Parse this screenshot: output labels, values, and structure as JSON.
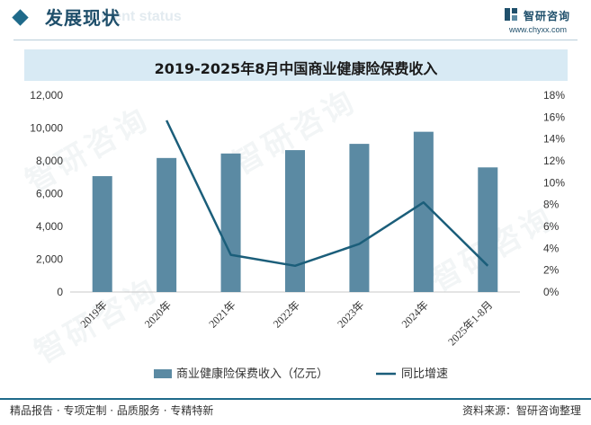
{
  "header": {
    "title": "发展现状",
    "title_en": "ment status",
    "logo_name": "智研咨询",
    "logo_url": "www.chyxx.com",
    "watermark": "智研咨询"
  },
  "chart_data": {
    "type": "bar",
    "title": "2019-2025年8月中国商业健康险保费收入",
    "categories": [
      "2019年",
      "2020年",
      "2021年",
      "2022年",
      "2023年",
      "2024年",
      "2025年1-8月"
    ],
    "series": [
      {
        "name": "商业健康险保费收入（亿元）",
        "type": "bar",
        "axis": "left",
        "color": "#5b8aa3",
        "values": [
          7066,
          8173,
          8447,
          8653,
          9035,
          9773,
          7600
        ]
      },
      {
        "name": "同比增速",
        "type": "line",
        "axis": "right",
        "color": "#1b5e7a",
        "values": [
          null,
          15.7,
          3.4,
          2.4,
          4.4,
          8.2,
          2.4
        ]
      }
    ],
    "y_left": {
      "min": 0,
      "max": 12000,
      "step": 2000,
      "tick_labels": [
        "0",
        "2,000",
        "4,000",
        "6,000",
        "8,000",
        "10,000",
        "12,000"
      ]
    },
    "y_right": {
      "min": 0,
      "max": 18,
      "step": 2,
      "tick_labels": [
        "0%",
        "2%",
        "4%",
        "6%",
        "8%",
        "10%",
        "12%",
        "14%",
        "16%",
        "18%"
      ]
    },
    "legend_position": "bottom"
  },
  "footer": {
    "left": "精品报告 · 专项定制 · 品质服务 · 专精特新",
    "right": "资料来源：智研咨询整理"
  },
  "colors": {
    "accent": "#1f6a8a",
    "bar": "#5b8aa3",
    "line": "#1b5e7a",
    "band": "#d8eaf4"
  }
}
